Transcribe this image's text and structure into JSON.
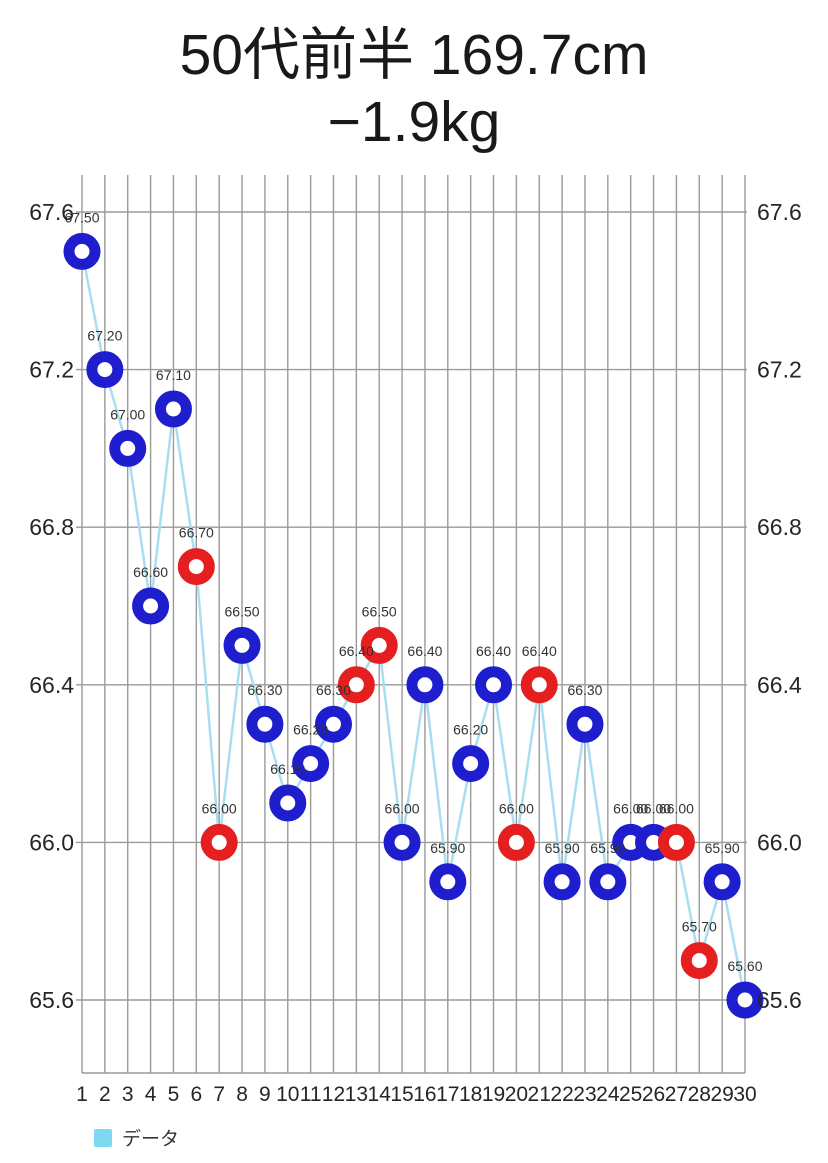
{
  "title": {
    "line1": "50代前半 169.7cm",
    "line2": "−1.9kg"
  },
  "legend": {
    "label": "データ",
    "swatch_color": "#7ed8f2"
  },
  "colors": {
    "blue": "#1e1ece",
    "red": "#e51f1f",
    "line": "#a9def2",
    "grid": "#9a9a9a",
    "axis_text": "#262626",
    "label_text": "#333333",
    "title_text": "#191919"
  },
  "chart_data": {
    "type": "line",
    "title": "50代前半 169.7cm −1.9kg",
    "xlabel": "",
    "ylabel": "",
    "grid": true,
    "legend_position": "bottom-left",
    "series_name": "データ",
    "x": [
      1,
      2,
      3,
      4,
      5,
      6,
      7,
      8,
      9,
      10,
      11,
      12,
      13,
      14,
      15,
      16,
      17,
      18,
      19,
      20,
      21,
      22,
      23,
      24,
      25,
      26,
      27,
      28,
      29,
      30
    ],
    "values": [
      67.5,
      67.2,
      67.0,
      66.6,
      67.1,
      66.7,
      66.0,
      66.5,
      66.3,
      66.1,
      66.2,
      66.3,
      66.4,
      66.5,
      66.0,
      66.4,
      65.9,
      66.2,
      66.4,
      66.0,
      66.4,
      65.9,
      66.3,
      65.9,
      66.0,
      66.0,
      66.0,
      65.7,
      65.9,
      65.6
    ],
    "point_labels": [
      "67.50",
      "67.20",
      "67.00",
      "66.60",
      "67.10",
      "66.70",
      "66.00",
      "66.50",
      "66.30",
      "66.10",
      "66.20",
      "66.30",
      "66.40",
      "66.50",
      "66.00",
      "66.40",
      "65.90",
      "66.20",
      "66.40",
      "66.00",
      "66.40",
      "65.90",
      "66.30",
      "65.90",
      "66.00",
      "66.00",
      "66.00",
      "65.70",
      "65.90",
      "65.60"
    ],
    "point_colors": [
      "blue",
      "blue",
      "blue",
      "blue",
      "blue",
      "red",
      "red",
      "blue",
      "blue",
      "blue",
      "blue",
      "blue",
      "red",
      "red",
      "blue",
      "blue",
      "blue",
      "blue",
      "blue",
      "red",
      "red",
      "blue",
      "blue",
      "blue",
      "blue",
      "blue",
      "red",
      "red",
      "blue",
      "blue"
    ],
    "y_tick_values": [
      67.6,
      67.2,
      66.8,
      66.4,
      66.0,
      65.6
    ],
    "y_tick_labels": [
      "67.6",
      "67.2",
      "66.8",
      "66.4",
      "66.0",
      "65.6"
    ],
    "ylim": [
      65.6,
      67.6
    ]
  }
}
